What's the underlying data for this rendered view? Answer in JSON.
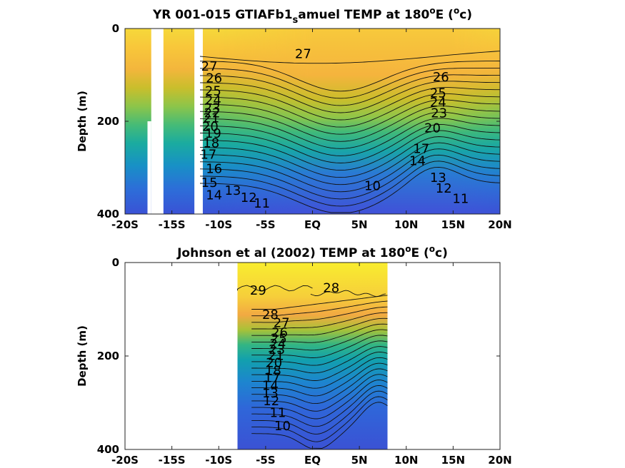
{
  "chart_data": [
    {
      "type": "heatmap",
      "title_main": "YR 001-015 GTIAFb1",
      "title_sub": "s",
      "title_rest": "amuel TEMP at 180",
      "title_deg": "o",
      "title_east": "E (",
      "title_unit_sup": "o",
      "title_unit": "c)",
      "ylabel": "Depth (m)",
      "xlim": [
        -20,
        20
      ],
      "ylim": [
        0,
        400
      ],
      "x_ticks": [
        -20,
        -15,
        -10,
        -5,
        0,
        5,
        10,
        15,
        20
      ],
      "x_tick_labels": [
        "-20S",
        "-15S",
        "-10S",
        "-5S",
        "EQ",
        "5N",
        "10N",
        "15N",
        "20N"
      ],
      "y_ticks": [
        0,
        200,
        400
      ],
      "y_tick_labels": [
        "0",
        "200",
        "400"
      ],
      "data_lon_range": [
        -20,
        20
      ],
      "missing_columns": [
        {
          "x0": -17.2,
          "x1": -15.9,
          "y0": 0,
          "y1": 400
        },
        {
          "x0": -17.6,
          "x1": -17.2,
          "y0": 200,
          "y1": 400
        },
        {
          "x0": -12.6,
          "x1": -11.7,
          "y0": 0,
          "y1": 400
        }
      ],
      "contour_labels": [
        {
          "text": "27",
          "x": -1.0,
          "y": 55
        },
        {
          "text": "27",
          "x": -11.0,
          "y": 82
        },
        {
          "text": "26",
          "x": -10.5,
          "y": 108
        },
        {
          "text": "25",
          "x": -10.6,
          "y": 135
        },
        {
          "text": "24",
          "x": -10.6,
          "y": 155
        },
        {
          "text": "23",
          "x": -10.7,
          "y": 172
        },
        {
          "text": "22",
          "x": -10.7,
          "y": 183
        },
        {
          "text": "21",
          "x": -10.8,
          "y": 194
        },
        {
          "text": "20",
          "x": -10.9,
          "y": 212
        },
        {
          "text": "19",
          "x": -10.6,
          "y": 227
        },
        {
          "text": "18",
          "x": -10.8,
          "y": 248
        },
        {
          "text": "17",
          "x": -11.1,
          "y": 272
        },
        {
          "text": "16",
          "x": -10.5,
          "y": 303
        },
        {
          "text": "15",
          "x": -11.0,
          "y": 333
        },
        {
          "text": "14",
          "x": -10.5,
          "y": 360
        },
        {
          "text": "13",
          "x": -8.5,
          "y": 350
        },
        {
          "text": "12",
          "x": -6.8,
          "y": 365
        },
        {
          "text": "11",
          "x": -5.4,
          "y": 378
        },
        {
          "text": "10",
          "x": 6.4,
          "y": 340
        },
        {
          "text": "26",
          "x": 13.7,
          "y": 105
        },
        {
          "text": "25",
          "x": 13.4,
          "y": 140
        },
        {
          "text": "24",
          "x": 13.4,
          "y": 160
        },
        {
          "text": "23",
          "x": 13.5,
          "y": 183
        },
        {
          "text": "20",
          "x": 12.8,
          "y": 215
        },
        {
          "text": "17",
          "x": 11.6,
          "y": 260
        },
        {
          "text": "14",
          "x": 11.2,
          "y": 286
        },
        {
          "text": "13",
          "x": 13.4,
          "y": 322
        },
        {
          "text": "12",
          "x": 14.0,
          "y": 345
        },
        {
          "text": "11",
          "x": 15.8,
          "y": 368
        }
      ]
    },
    {
      "type": "heatmap",
      "title_main": "Johnson et al (2002) TEMP at 180",
      "title_deg": "o",
      "title_east": "E (",
      "title_unit_sup": "o",
      "title_unit": "c)",
      "ylabel": "Depth (m)",
      "xlim": [
        -20,
        20
      ],
      "ylim": [
        0,
        400
      ],
      "x_ticks": [
        -20,
        -15,
        -10,
        -5,
        0,
        5,
        10,
        15,
        20
      ],
      "x_tick_labels": [
        "-20S",
        "-15S",
        "-10S",
        "-5S",
        "EQ",
        "5N",
        "10N",
        "15N",
        "20N"
      ],
      "y_ticks": [
        0,
        200,
        400
      ],
      "y_tick_labels": [
        "0",
        "200",
        "400"
      ],
      "data_lon_range": [
        -8,
        8
      ],
      "contour_labels": [
        {
          "text": "29",
          "x": -5.8,
          "y": 60
        },
        {
          "text": "28",
          "x": 2.0,
          "y": 55
        },
        {
          "text": "28",
          "x": -4.5,
          "y": 112
        },
        {
          "text": "27",
          "x": -3.3,
          "y": 130
        },
        {
          "text": "26",
          "x": -3.5,
          "y": 150
        },
        {
          "text": "25",
          "x": -3.6,
          "y": 163
        },
        {
          "text": "24",
          "x": -3.7,
          "y": 175
        },
        {
          "text": "23",
          "x": -3.8,
          "y": 187
        },
        {
          "text": "21",
          "x": -3.9,
          "y": 200
        },
        {
          "text": "20",
          "x": -4.1,
          "y": 215
        },
        {
          "text": "18",
          "x": -4.2,
          "y": 232
        },
        {
          "text": "17",
          "x": -4.3,
          "y": 247
        },
        {
          "text": "14",
          "x": -4.5,
          "y": 264
        },
        {
          "text": "13",
          "x": -4.5,
          "y": 280
        },
        {
          "text": "12",
          "x": -4.4,
          "y": 297
        },
        {
          "text": "11",
          "x": -3.7,
          "y": 322
        },
        {
          "text": "10",
          "x": -3.2,
          "y": 350
        }
      ]
    }
  ]
}
